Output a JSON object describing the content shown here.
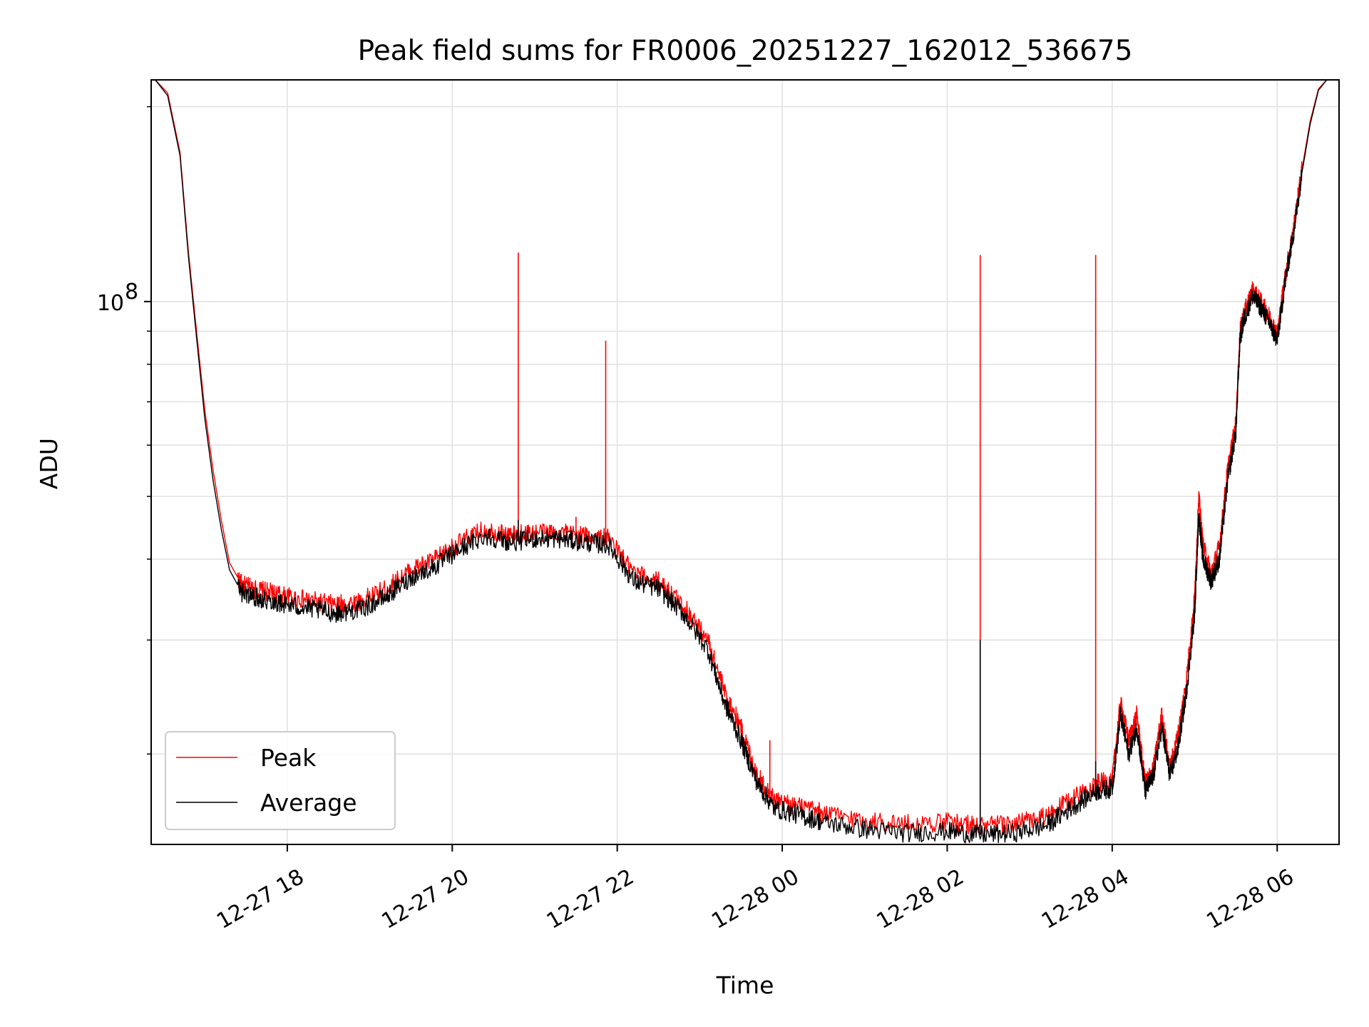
{
  "chart_data": {
    "type": "line",
    "title": "Peak field sums for FR0006_20251227_162012_536675",
    "xlabel": "Time",
    "ylabel": "ADU",
    "yscale": "log",
    "y_major_tick": {
      "value": 100000000,
      "label_base": "10",
      "label_exp": "8"
    },
    "y_minor_ticks": [
      20000000,
      30000000,
      40000000,
      50000000,
      60000000,
      70000000,
      80000000,
      90000000,
      200000000
    ],
    "ylim": [
      14500000,
      220000000
    ],
    "x_ticks": [
      "12-27 18",
      "12-27 20",
      "12-27 22",
      "12-28 00",
      "12-28 02",
      "12-28 04",
      "12-28 06"
    ],
    "xlim_hours_from_12_27_00": [
      16.35,
      30.75
    ],
    "grid": true,
    "legend_position": "lower-left",
    "series": [
      {
        "name": "Peak",
        "color": "#ff0000",
        "x_hours": [
          16.4,
          16.55,
          16.7,
          16.8,
          16.9,
          17.0,
          17.1,
          17.2,
          17.3,
          17.45,
          17.6,
          17.8,
          18.0,
          18.3,
          18.6,
          18.9,
          19.2,
          19.5,
          19.8,
          20.1,
          20.4,
          20.7,
          21.0,
          21.3,
          21.6,
          21.9,
          22.2,
          22.5,
          22.8,
          23.1,
          23.3,
          23.5,
          23.7,
          23.9,
          24.2,
          24.5,
          25.0,
          25.5,
          26.0,
          26.4,
          26.8,
          27.2,
          27.5,
          27.8,
          28.0,
          28.1,
          28.2,
          28.3,
          28.4,
          28.5,
          28.6,
          28.7,
          28.8,
          28.9,
          29.0,
          29.05,
          29.1,
          29.2,
          29.3,
          29.4,
          29.5,
          29.55,
          29.6,
          29.7,
          29.8,
          29.9,
          30.0,
          30.1,
          30.2,
          30.3,
          30.4,
          30.5,
          30.6,
          30.7
        ],
        "y_adu": [
          220000000,
          210000000,
          170000000,
          120000000,
          90000000,
          68000000,
          55000000,
          46000000,
          39500000,
          36500000,
          36000000,
          35500000,
          35000000,
          34500000,
          34000000,
          34500000,
          36000000,
          38500000,
          40000000,
          42500000,
          44500000,
          43500000,
          44000000,
          44000000,
          43500000,
          43000000,
          38000000,
          37000000,
          34000000,
          30000000,
          25000000,
          22000000,
          18500000,
          17000000,
          16600000,
          16200000,
          15800000,
          15600000,
          15700000,
          15500000,
          15600000,
          16000000,
          17000000,
          18000000,
          18200000,
          24000000,
          21000000,
          23000000,
          18000000,
          19000000,
          23000000,
          19000000,
          21500000,
          26000000,
          35000000,
          50000000,
          42000000,
          38000000,
          42000000,
          55000000,
          65000000,
          90000000,
          96000000,
          104000000,
          100000000,
          95000000,
          89000000,
          110000000,
          130000000,
          160000000,
          190000000,
          213000000,
          220000000,
          220000000
        ],
        "spikes": [
          {
            "x_hours": 20.8,
            "y_adu": 119000000
          },
          {
            "x_hours": 21.86,
            "y_adu": 87000000
          },
          {
            "x_hours": 21.5,
            "y_adu": 46500000
          },
          {
            "x_hours": 23.85,
            "y_adu": 21000000
          },
          {
            "x_hours": 26.4,
            "y_adu": 118000000
          },
          {
            "x_hours": 27.8,
            "y_adu": 118000000
          }
        ]
      },
      {
        "name": "Average",
        "color": "#000000",
        "x_hours": [
          16.4,
          16.55,
          16.7,
          16.8,
          16.9,
          17.0,
          17.1,
          17.2,
          17.3,
          17.45,
          17.6,
          17.8,
          18.0,
          18.3,
          18.6,
          18.9,
          19.2,
          19.5,
          19.8,
          20.1,
          20.4,
          20.7,
          21.0,
          21.3,
          21.6,
          21.9,
          22.2,
          22.5,
          22.8,
          23.1,
          23.3,
          23.5,
          23.7,
          23.9,
          24.2,
          24.5,
          25.0,
          25.5,
          26.0,
          26.4,
          26.8,
          27.2,
          27.5,
          27.8,
          28.0,
          28.1,
          28.2,
          28.3,
          28.4,
          28.5,
          28.6,
          28.7,
          28.8,
          28.9,
          29.0,
          29.05,
          29.1,
          29.2,
          29.3,
          29.4,
          29.5,
          29.55,
          29.6,
          29.7,
          29.8,
          29.9,
          30.0,
          30.1,
          30.2,
          30.3,
          30.4,
          30.5,
          30.6,
          30.7
        ],
        "y_adu": [
          220000000,
          208000000,
          168000000,
          118000000,
          88000000,
          66000000,
          53000000,
          44500000,
          38500000,
          35500000,
          35000000,
          34500000,
          34000000,
          33500000,
          33000000,
          33500000,
          35000000,
          37500000,
          39000000,
          41500000,
          43500000,
          42500000,
          43000000,
          43000000,
          42500000,
          42000000,
          37000000,
          36000000,
          33000000,
          29000000,
          24000000,
          21000000,
          18000000,
          16500000,
          16100000,
          15700000,
          15300000,
          15100000,
          15200000,
          15000000,
          15100000,
          15500000,
          16500000,
          17500000,
          17700000,
          23000000,
          20000000,
          22000000,
          17500000,
          18500000,
          22000000,
          18500000,
          20500000,
          25000000,
          33000000,
          47000000,
          40000000,
          37000000,
          40000000,
          53000000,
          63000000,
          88000000,
          94000000,
          102000000,
          98000000,
          93000000,
          87000000,
          108000000,
          128000000,
          158000000,
          188000000,
          212000000,
          220000000,
          220000000
        ],
        "spikes": [
          {
            "x_hours": 20.8,
            "y_adu": 46000000
          },
          {
            "x_hours": 21.86,
            "y_adu": 44000000
          },
          {
            "x_hours": 26.4,
            "y_adu": 30000000
          },
          {
            "x_hours": 27.8,
            "y_adu": 19500000
          }
        ]
      }
    ]
  }
}
